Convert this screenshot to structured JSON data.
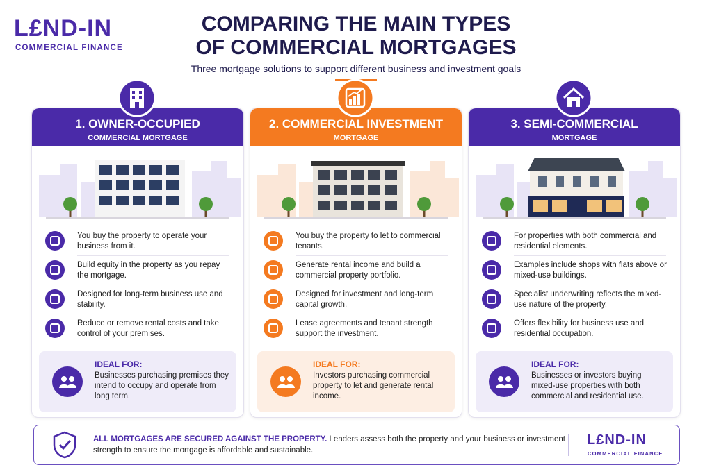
{
  "logo": {
    "name": "L£ND-IN",
    "tagline": "COMMERCIAL FINANCE"
  },
  "header": {
    "title_line1": "COMPARING THE MAIN TYPES",
    "title_line2": "OF COMMERCIAL MORTGAGES",
    "subtitle": "Three mortgage solutions to support different business and investment goals"
  },
  "cards": [
    {
      "title": "1. OWNER-OCCUPIED",
      "subtitle": "COMMERCIAL MORTGAGE",
      "points": [
        "You buy the property to operate your business from it.",
        "Build equity in the property as you repay the mortgage.",
        "Designed for long-term business use and stability.",
        "Reduce or remove rental costs and take control of your premises."
      ],
      "ideal_label": "IDEAL FOR:",
      "ideal_text": "Businesses purchasing premises they intend to occupy and operate from long term."
    },
    {
      "title": "2. COMMERCIAL INVESTMENT",
      "subtitle": "MORTGAGE",
      "points": [
        "You buy the property to let to commercial tenants.",
        "Generate rental income and build a commercial property portfolio.",
        "Designed for investment and long-term capital growth.",
        "Lease agreements and tenant strength support the investment."
      ],
      "ideal_label": "IDEAL FOR:",
      "ideal_text": "Investors purchasing commercial property to let and generate rental income."
    },
    {
      "title": "3. SEMI-COMMERCIAL",
      "subtitle": "MORTGAGE",
      "points": [
        "For properties with both commercial and residential elements.",
        "Examples include shops with flats above or mixed-use buildings.",
        "Specialist underwriting reflects the mixed-use nature of the property.",
        "Offers flexibility for business use and residential occupation."
      ],
      "ideal_label": "IDEAL FOR:",
      "ideal_text": "Businesses or investors buying mixed-use properties with both commercial and residential use."
    }
  ],
  "footer": {
    "bold": "ALL MORTGAGES ARE SECURED AGAINST THE PROPERTY.",
    "text": "Lenders assess both the property and your business or investment strength to ensure the mortgage is affordable and sustainable.",
    "logo_name": "L£ND-IN",
    "logo_tagline": "COMMERCIAL FINANCE"
  }
}
